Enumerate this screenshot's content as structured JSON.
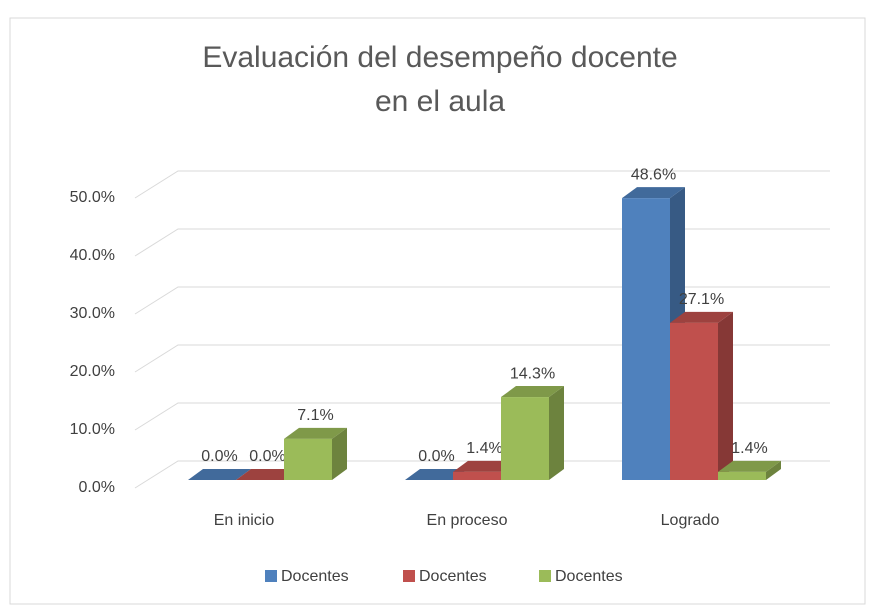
{
  "chart_data": {
    "type": "bar3d",
    "title": "Evaluación del desempeño docente en el aula",
    "categories": [
      "En inicio",
      "En proceso",
      "Logrado"
    ],
    "series": [
      {
        "name": "Docentes",
        "color": "#4f81bd",
        "values": [
          0,
          0,
          48.6
        ],
        "value_labels": [
          "0.0%",
          "0.0%",
          "48.6%"
        ]
      },
      {
        "name": "Docentes",
        "color": "#c0504d",
        "values": [
          0,
          1.4,
          27.1
        ],
        "value_labels": [
          "0.0%",
          "1.4%",
          "27.1%"
        ]
      },
      {
        "name": "Docentes",
        "color": "#9bbb59",
        "values": [
          7.1,
          14.3,
          1.4
        ],
        "value_labels": [
          "7.1%",
          "14.3%",
          "1.4%"
        ]
      }
    ],
    "ylim": [
      0,
      50
    ],
    "yticks": [
      {
        "value": 0,
        "label": "0.0%"
      },
      {
        "value": 10,
        "label": "10.0%"
      },
      {
        "value": 20,
        "label": "20.0%"
      },
      {
        "value": 30,
        "label": "30.0%"
      },
      {
        "value": 40,
        "label": "40.0%"
      },
      {
        "value": 50,
        "label": "50.0%"
      }
    ],
    "grid": true,
    "legend": "bottom"
  }
}
